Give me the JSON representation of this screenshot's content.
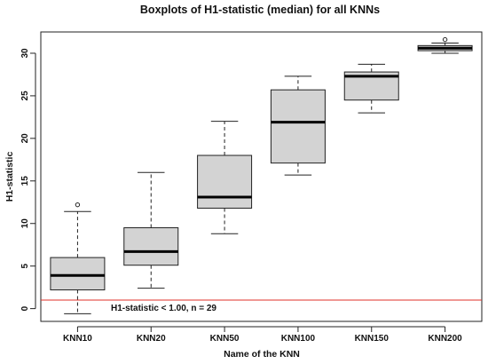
{
  "chart_data": {
    "type": "boxplot",
    "title": "Boxplots of H1-statistic (median) for all KNNs",
    "xlabel": "Name of the KNN",
    "ylabel": "H1-statistic",
    "ylim": [
      -1.5,
      32.5
    ],
    "yticks": [
      0,
      5,
      10,
      15,
      20,
      25,
      30
    ],
    "categories": [
      "KNN10",
      "KNN20",
      "KNN50",
      "KNN100",
      "KNN150",
      "KNN200"
    ],
    "boxes": [
      {
        "name": "KNN10",
        "whisker_low": -0.6,
        "q1": 2.2,
        "median": 3.9,
        "q3": 6.0,
        "whisker_high": 11.4,
        "outliers": [
          12.2
        ]
      },
      {
        "name": "KNN20",
        "whisker_low": 2.4,
        "q1": 5.1,
        "median": 6.7,
        "q3": 9.5,
        "whisker_high": 16.0,
        "outliers": []
      },
      {
        "name": "KNN50",
        "whisker_low": 8.8,
        "q1": 11.8,
        "median": 13.1,
        "q3": 18.0,
        "whisker_high": 22.0,
        "outliers": []
      },
      {
        "name": "KNN100",
        "whisker_low": 15.7,
        "q1": 17.1,
        "median": 21.9,
        "q3": 25.7,
        "whisker_high": 27.3,
        "outliers": []
      },
      {
        "name": "KNN150",
        "whisker_low": 23.0,
        "q1": 24.5,
        "median": 27.3,
        "q3": 27.8,
        "whisker_high": 28.7,
        "outliers": []
      },
      {
        "name": "KNN200",
        "whisker_low": 30.0,
        "q1": 30.3,
        "median": 30.6,
        "q3": 30.9,
        "whisker_high": 31.2,
        "outliers": [
          31.6
        ]
      }
    ],
    "reference_line": {
      "y": 1.0,
      "color": "#e0302a",
      "label": "H1-statistic < 1.00, n = 29"
    },
    "box_fill": "#d3d3d3",
    "grid": false
  }
}
